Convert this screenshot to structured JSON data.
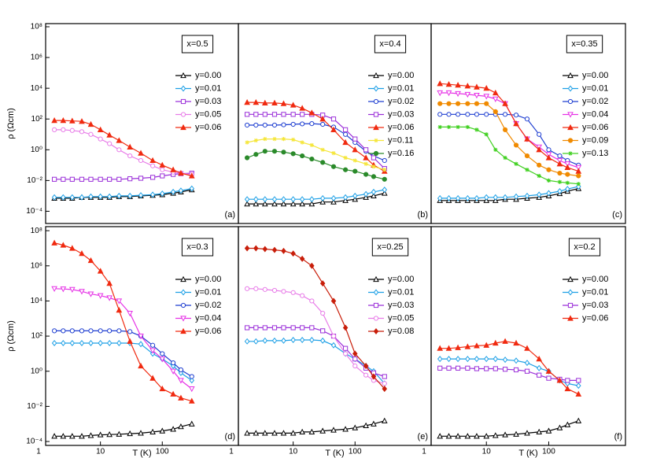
{
  "chart_data": [
    {
      "type": "line",
      "title": "x=0.5",
      "panel_label": "(a)",
      "ylabel": "ρ (Ωcm)",
      "log_x": true,
      "log_y": true,
      "x": [
        1.8,
        2.5,
        3.5,
        5,
        7,
        10,
        14,
        20,
        30,
        45,
        70,
        100,
        150,
        200,
        300
      ],
      "xlim": [
        1.3,
        1700
      ],
      "ylim": [
        1.6e-05,
        160000000
      ],
      "yticks": [
        {
          "value": 0.0001,
          "label": "10⁻⁴"
        },
        {
          "value": 0.01,
          "label": "10⁻²"
        },
        {
          "value": 1,
          "label": "10⁰"
        },
        {
          "value": 100,
          "label": "10²"
        },
        {
          "value": 10000,
          "label": "10⁴"
        },
        {
          "value": 1000000,
          "label": "10⁶"
        },
        {
          "value": 100000000,
          "label": "10⁸"
        }
      ],
      "series": [
        {
          "name": "y=0.00",
          "color": "#000000",
          "marker": "triangle-open",
          "values": [
            0.0007,
            0.0007,
            0.0007,
            0.0008,
            0.0008,
            0.0008,
            0.0008,
            0.0009,
            0.0009,
            0.001,
            0.0011,
            0.0012,
            0.0015,
            0.0018,
            0.0025
          ]
        },
        {
          "name": "y=0.01",
          "color": "#1ea0e6",
          "marker": "diamond-open",
          "values": [
            0.0008,
            0.0008,
            0.0008,
            0.0008,
            0.0009,
            0.0009,
            0.0009,
            0.001,
            0.001,
            0.0011,
            0.0012,
            0.0014,
            0.0018,
            0.0022,
            0.003
          ]
        },
        {
          "name": "y=0.03",
          "color": "#9b30d9",
          "marker": "square-open",
          "values": [
            0.012,
            0.012,
            0.012,
            0.012,
            0.012,
            0.012,
            0.012,
            0.012,
            0.013,
            0.014,
            0.016,
            0.02,
            0.025,
            0.028,
            0.03
          ]
        },
        {
          "name": "y=0.05",
          "color": "#e87de8",
          "marker": "circle-open",
          "values": [
            20,
            20,
            18,
            15,
            10,
            5,
            2.5,
            1,
            0.4,
            0.2,
            0.09,
            0.05,
            0.035,
            0.03,
            0.025
          ]
        },
        {
          "name": "y=0.06",
          "color": "#f02a10",
          "marker": "triangle",
          "values": [
            80,
            80,
            75,
            70,
            45,
            20,
            9,
            4,
            1.5,
            0.6,
            0.2,
            0.1,
            0.05,
            0.03,
            0.02
          ]
        }
      ]
    },
    {
      "type": "line",
      "title": "x=0.4",
      "panel_label": "(b)",
      "log_x": true,
      "log_y": true,
      "x": [
        1.8,
        2.5,
        3.5,
        5,
        7,
        10,
        14,
        20,
        30,
        45,
        70,
        100,
        150,
        200,
        300
      ],
      "xlim": [
        1.3,
        1700
      ],
      "ylim": [
        1.6e-05,
        160000000
      ],
      "series": [
        {
          "name": "y=0.00",
          "color": "#000000",
          "marker": "triangle-open",
          "values": [
            0.0003,
            0.0003,
            0.0003,
            0.0003,
            0.0003,
            0.0003,
            0.0003,
            0.0003,
            0.0004,
            0.0004,
            0.0005,
            0.0006,
            0.0008,
            0.001,
            0.0015
          ]
        },
        {
          "name": "y=0.01",
          "color": "#1ea0e6",
          "marker": "diamond-open",
          "values": [
            0.0006,
            0.0006,
            0.0006,
            0.0006,
            0.0006,
            0.0006,
            0.0006,
            0.0006,
            0.0007,
            0.0007,
            0.0008,
            0.001,
            0.0013,
            0.0018,
            0.0025
          ]
        },
        {
          "name": "y=0.02",
          "color": "#1f3fd1",
          "marker": "circle-open",
          "values": [
            40,
            40,
            40,
            40,
            42,
            45,
            48,
            50,
            45,
            30,
            10,
            3,
            0.8,
            0.4,
            0.2
          ]
        },
        {
          "name": "y=0.03",
          "color": "#9b30d9",
          "marker": "square-open",
          "values": [
            200,
            200,
            200,
            200,
            200,
            200,
            200,
            200,
            180,
            100,
            20,
            5,
            1,
            0.3,
            0.06
          ]
        },
        {
          "name": "y=0.06",
          "color": "#f02a10",
          "marker": "triangle",
          "values": [
            1200,
            1200,
            1100,
            1100,
            1000,
            800,
            500,
            250,
            100,
            20,
            3,
            1,
            0.3,
            0.1,
            0.04
          ]
        },
        {
          "name": "y=0.11",
          "color": "#f5e63a",
          "marker": "star",
          "values": [
            3,
            4,
            5,
            5,
            5,
            4.5,
            3,
            2,
            1,
            0.6,
            0.3,
            0.2,
            0.12,
            0.08,
            0.05
          ]
        },
        {
          "name": "y=0.16",
          "color": "#2a8a2a",
          "marker": "circle",
          "values": [
            0.3,
            0.5,
            0.8,
            0.8,
            0.7,
            0.55,
            0.4,
            0.25,
            0.15,
            0.08,
            0.05,
            0.04,
            0.025,
            0.018,
            0.012
          ]
        }
      ]
    },
    {
      "type": "line",
      "title": "x=0.35",
      "panel_label": "(c)",
      "log_x": true,
      "log_y": true,
      "x": [
        1.8,
        2.5,
        3.5,
        5,
        7,
        10,
        14,
        20,
        30,
        45,
        70,
        100,
        150,
        200,
        300
      ],
      "xlim": [
        1.3,
        1700
      ],
      "ylim": [
        1.6e-05,
        160000000
      ],
      "series": [
        {
          "name": "y=0.00",
          "color": "#000000",
          "marker": "triangle-open",
          "values": [
            0.0005,
            0.0005,
            0.0005,
            0.0005,
            0.0005,
            0.0005,
            0.0005,
            0.0006,
            0.0006,
            0.0007,
            0.0008,
            0.001,
            0.0014,
            0.002,
            0.003
          ]
        },
        {
          "name": "y=0.01",
          "color": "#1ea0e6",
          "marker": "diamond-open",
          "values": [
            0.0007,
            0.0007,
            0.0007,
            0.0007,
            0.0007,
            0.0008,
            0.0008,
            0.0008,
            0.0009,
            0.001,
            0.0012,
            0.0015,
            0.002,
            0.0028,
            0.004
          ]
        },
        {
          "name": "y=0.02",
          "color": "#1f3fd1",
          "marker": "circle-open",
          "values": [
            200,
            200,
            200,
            200,
            200,
            200,
            200,
            200,
            180,
            100,
            10,
            1,
            0.4,
            0.2,
            0.1
          ]
        },
        {
          "name": "y=0.04",
          "color": "#e633e6",
          "marker": "triangle-down-open",
          "values": [
            5000,
            5000,
            4500,
            4000,
            3500,
            3000,
            2000,
            1000,
            50,
            5,
            1.5,
            0.5,
            0.2,
            0.12,
            0.07
          ]
        },
        {
          "name": "y=0.06",
          "color": "#f02a10",
          "marker": "triangle",
          "values": [
            20000,
            18000,
            16000,
            14000,
            12000,
            10000,
            5000,
            1000,
            50,
            5,
            1,
            0.3,
            0.12,
            0.07,
            0.04
          ]
        },
        {
          "name": "y=0.09",
          "color": "#f08a00",
          "marker": "circle",
          "values": [
            1000,
            1000,
            1000,
            1000,
            1000,
            1000,
            300,
            20,
            2,
            0.4,
            0.1,
            0.05,
            0.03,
            0.025,
            0.02
          ]
        },
        {
          "name": "y=0.13",
          "color": "#40d020",
          "marker": "star",
          "values": [
            30,
            30,
            30,
            30,
            20,
            10,
            1,
            0.3,
            0.12,
            0.05,
            0.02,
            0.01,
            0.008,
            0.007,
            0.006
          ]
        }
      ]
    },
    {
      "type": "line",
      "title": "x=0.3",
      "panel_label": "(d)",
      "ylabel": "ρ (Ωcm)",
      "xlabel": "T (K)",
      "log_x": true,
      "log_y": true,
      "x": [
        1.8,
        2.5,
        3.5,
        5,
        7,
        10,
        14,
        20,
        30,
        45,
        70,
        100,
        150,
        200,
        300
      ],
      "xlim": [
        1.3,
        1700
      ],
      "ylim": [
        6e-05,
        170000000
      ],
      "xticks": [
        1,
        10,
        100
      ],
      "yticks": [
        {
          "value": 0.0001,
          "label": "10⁻⁴"
        },
        {
          "value": 0.01,
          "label": "10⁻²"
        },
        {
          "value": 1,
          "label": "10⁰"
        },
        {
          "value": 100,
          "label": "10²"
        },
        {
          "value": 10000,
          "label": "10⁴"
        },
        {
          "value": 1000000,
          "label": "10⁶"
        },
        {
          "value": 100000000,
          "label": "10⁸"
        }
      ],
      "series": [
        {
          "name": "y=0.00",
          "color": "#000000",
          "marker": "triangle-open",
          "values": [
            0.0002,
            0.0002,
            0.0002,
            0.0002,
            0.00022,
            0.00024,
            0.00025,
            0.00026,
            0.00028,
            0.0003,
            0.00035,
            0.0004,
            0.0005,
            0.0007,
            0.001
          ]
        },
        {
          "name": "y=0.01",
          "color": "#1ea0e6",
          "marker": "diamond-open",
          "values": [
            40,
            40,
            40,
            40,
            40,
            40,
            40,
            40,
            40,
            35,
            10,
            5,
            2,
            0.8,
            0.3
          ]
        },
        {
          "name": "y=0.02",
          "color": "#1f3fd1",
          "marker": "circle-open",
          "values": [
            200,
            200,
            200,
            200,
            200,
            200,
            200,
            200,
            180,
            100,
            30,
            10,
            3,
            1.2,
            0.5
          ]
        },
        {
          "name": "y=0.04",
          "color": "#e633e6",
          "marker": "triangle-down-open",
          "values": [
            50000,
            48000,
            45000,
            35000,
            25000,
            20000,
            15000,
            10000,
            2000,
            100,
            15,
            5,
            1,
            0.3,
            0.1
          ]
        },
        {
          "name": "y=0.06",
          "color": "#f02a10",
          "marker": "triangle",
          "values": [
            20000000,
            15000000,
            10000000,
            5000000,
            2000000,
            500000,
            100000,
            3000,
            50,
            2,
            0.4,
            0.1,
            0.05,
            0.03,
            0.02
          ]
        }
      ]
    },
    {
      "type": "line",
      "title": "x=0.25",
      "panel_label": "(e)",
      "xlabel": "T (K)",
      "log_x": true,
      "log_y": true,
      "x": [
        1.8,
        2.5,
        3.5,
        5,
        7,
        10,
        14,
        20,
        30,
        45,
        70,
        100,
        150,
        200,
        300
      ],
      "xlim": [
        1.3,
        1700
      ],
      "ylim": [
        6e-05,
        170000000
      ],
      "xticks": [
        1,
        10,
        100
      ],
      "series": [
        {
          "name": "y=0.00",
          "color": "#000000",
          "marker": "triangle-open",
          "values": [
            0.0003,
            0.0003,
            0.0003,
            0.0003,
            0.0003,
            0.0003,
            0.00035,
            0.00035,
            0.0004,
            0.00045,
            0.0005,
            0.0006,
            0.0008,
            0.001,
            0.0015
          ]
        },
        {
          "name": "y=0.01",
          "color": "#1ea0e6",
          "marker": "diamond-open",
          "values": [
            50,
            50,
            55,
            55,
            55,
            60,
            60,
            60,
            55,
            30,
            10,
            5,
            2,
            1,
            0.2
          ]
        },
        {
          "name": "y=0.03",
          "color": "#9b30d9",
          "marker": "square-open",
          "values": [
            300,
            300,
            300,
            300,
            300,
            300,
            300,
            300,
            200,
            100,
            20,
            5,
            1.5,
            0.8,
            0.5
          ]
        },
        {
          "name": "y=0.05",
          "color": "#e87de8",
          "marker": "circle-open",
          "values": [
            50000,
            50000,
            45000,
            40000,
            35000,
            30000,
            20000,
            10000,
            2000,
            100,
            10,
            2,
            0.6,
            0.3,
            0.2
          ]
        },
        {
          "name": "y=0.08",
          "color": "#c81e0a",
          "marker": "diamond",
          "values": [
            10000000,
            10000000,
            9000000,
            8000000,
            7000000,
            5000000,
            2500000,
            1000000,
            100000,
            10000,
            300,
            10,
            2,
            0.5,
            0.1
          ]
        }
      ]
    },
    {
      "type": "line",
      "title": "x=0.2",
      "panel_label": "(f)",
      "xlabel": "T (K)",
      "log_x": true,
      "log_y": true,
      "x": [
        1.8,
        2.5,
        3.5,
        5,
        7,
        10,
        14,
        20,
        30,
        45,
        70,
        100,
        150,
        200,
        300
      ],
      "xlim": [
        1.3,
        1700
      ],
      "ylim": [
        6e-05,
        170000000
      ],
      "xticks": [
        1,
        10,
        100
      ],
      "series": [
        {
          "name": "y=0.00",
          "color": "#000000",
          "marker": "triangle-open",
          "values": [
            0.0002,
            0.0002,
            0.0002,
            0.0002,
            0.0002,
            0.0002,
            0.00022,
            0.00024,
            0.00026,
            0.0003,
            0.00035,
            0.0004,
            0.0006,
            0.0009,
            0.0015
          ]
        },
        {
          "name": "y=0.01",
          "color": "#1ea0e6",
          "marker": "diamond-open",
          "values": [
            5,
            5,
            5,
            5,
            5,
            5,
            5,
            4.5,
            4,
            3,
            1.5,
            1,
            0.3,
            0.2,
            0.15
          ]
        },
        {
          "name": "y=0.03",
          "color": "#9b30d9",
          "marker": "square-open",
          "values": [
            1.5,
            1.5,
            1.5,
            1.5,
            1.4,
            1.4,
            1.4,
            1.3,
            1.2,
            1,
            0.6,
            0.4,
            0.35,
            0.3,
            0.3
          ]
        },
        {
          "name": "y=0.06",
          "color": "#f02a10",
          "marker": "triangle",
          "values": [
            20,
            20,
            22,
            25,
            28,
            30,
            40,
            50,
            40,
            20,
            5,
            1,
            0.3,
            0.1,
            0.05
          ]
        }
      ]
    }
  ]
}
